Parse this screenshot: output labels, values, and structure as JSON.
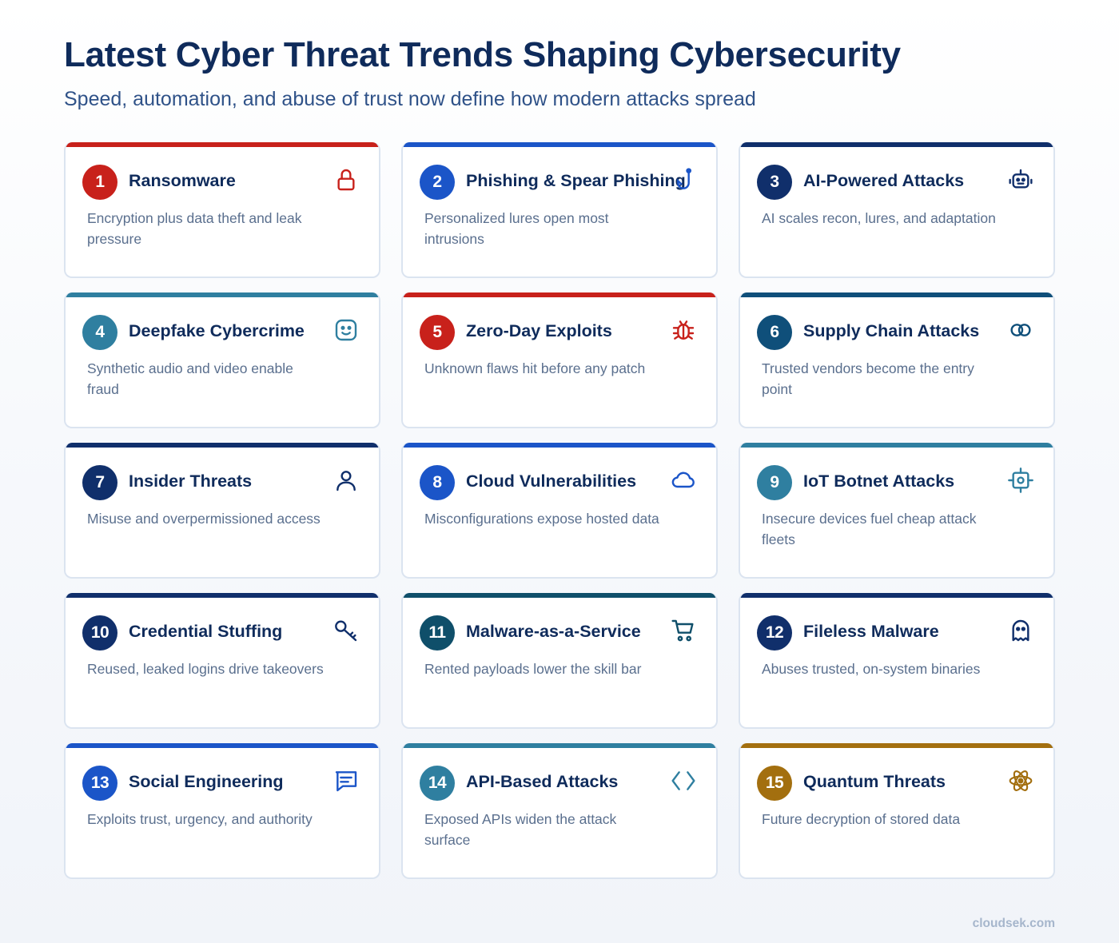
{
  "header": {
    "title": "Latest Cyber Threat Trends Shaping Cybersecurity",
    "subtitle": "Speed, automation, and abuse of trust now define how modern attacks spread"
  },
  "cards": [
    {
      "number": "1",
      "title": "Ransomware",
      "description": "Encryption plus data theft and leak pressure",
      "color": "#c8211b",
      "icon": "lock-icon"
    },
    {
      "number": "2",
      "title": "Phishing & Spear Phishing",
      "description": "Personalized lures open most intrusions",
      "color": "#1b55c8",
      "icon": "fishhook-icon"
    },
    {
      "number": "3",
      "title": "AI-Powered Attacks",
      "description": "AI scales recon, lures, and adaptation",
      "color": "#102f6b",
      "icon": "robot-icon"
    },
    {
      "number": "4",
      "title": "Deepfake Cybercrime",
      "description": "Synthetic audio and video enable fraud",
      "color": "#2f7fa0",
      "icon": "face-icon"
    },
    {
      "number": "5",
      "title": "Zero-Day Exploits",
      "description": "Unknown flaws hit before any patch",
      "color": "#c8211b",
      "icon": "bug-icon"
    },
    {
      "number": "6",
      "title": "Supply Chain Attacks",
      "description": "Trusted vendors become the entry point",
      "color": "#0f4f7a",
      "icon": "chain-link-icon"
    },
    {
      "number": "7",
      "title": "Insider Threats",
      "description": "Misuse and overpermissioned access",
      "color": "#102f6b",
      "icon": "user-icon"
    },
    {
      "number": "8",
      "title": "Cloud Vulnerabilities",
      "description": "Misconfigurations expose hosted data",
      "color": "#1b55c8",
      "icon": "cloud-icon"
    },
    {
      "number": "9",
      "title": "IoT Botnet Attacks",
      "description": "Insecure devices fuel cheap attack fleets",
      "color": "#2f7fa0",
      "icon": "chip-icon"
    },
    {
      "number": "10",
      "title": "Credential Stuffing",
      "description": "Reused, leaked logins drive takeovers",
      "color": "#102f6b",
      "icon": "key-icon"
    },
    {
      "number": "11",
      "title": "Malware-as-a-Service",
      "description": "Rented payloads lower the skill bar",
      "color": "#0f4f6a",
      "icon": "cart-icon"
    },
    {
      "number": "12",
      "title": "Fileless Malware",
      "description": "Abuses trusted, on-system binaries",
      "color": "#102f6b",
      "icon": "ghost-icon"
    },
    {
      "number": "13",
      "title": "Social Engineering",
      "description": "Exploits trust, urgency, and authority",
      "color": "#1b55c8",
      "icon": "chat-icon"
    },
    {
      "number": "14",
      "title": "API-Based Attacks",
      "description": "Exposed APIs widen the attack surface",
      "color": "#2f7fa0",
      "icon": "code-brackets-icon"
    },
    {
      "number": "15",
      "title": "Quantum Threats",
      "description": "Future decryption of stored data",
      "color": "#a36f0f",
      "icon": "atom-icon"
    }
  ],
  "footer": {
    "brand": "cloudsek.com"
  }
}
